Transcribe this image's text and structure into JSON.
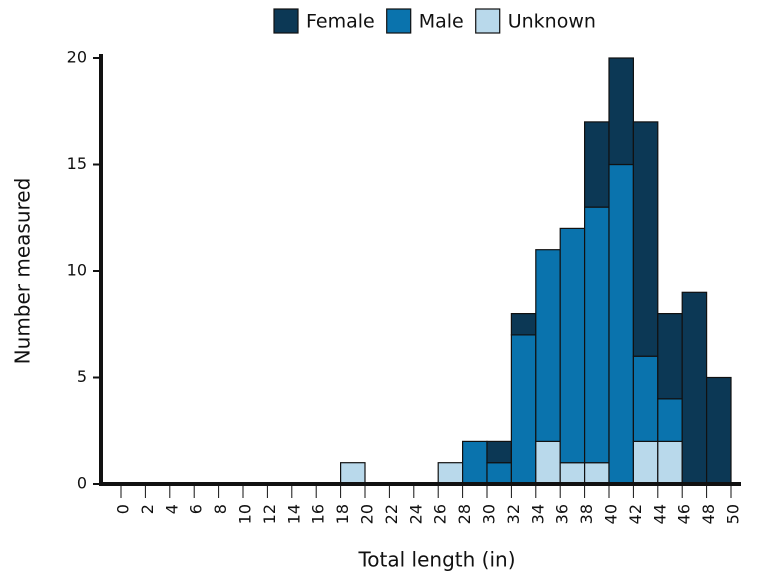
{
  "chart_data": {
    "type": "histogram",
    "x_label": "Total length (in)",
    "y_label": "Number measured",
    "bins": [
      0,
      2,
      4,
      6,
      8,
      10,
      12,
      14,
      16,
      18,
      20,
      22,
      24,
      26,
      28,
      30,
      32,
      34,
      36,
      38,
      40,
      42,
      44,
      46,
      48,
      50
    ],
    "series": [
      {
        "name": "Female",
        "color": "#0c3855",
        "values": [
          0,
          0,
          0,
          0,
          0,
          0,
          0,
          0,
          0,
          0,
          0,
          0,
          0,
          0,
          0,
          1,
          1,
          0,
          0,
          4,
          5,
          11,
          4,
          9,
          5
        ]
      },
      {
        "name": "Male",
        "color": "#0a73ad",
        "values": [
          0,
          0,
          0,
          0,
          0,
          0,
          0,
          0,
          0,
          0,
          0,
          0,
          0,
          0,
          2,
          1,
          7,
          9,
          11,
          12,
          15,
          4,
          2,
          0,
          0
        ]
      },
      {
        "name": "Unknown",
        "color": "#b9d9eb",
        "values": [
          0,
          0,
          0,
          0,
          0,
          0,
          0,
          0,
          0,
          1,
          0,
          0,
          0,
          1,
          0,
          0,
          0,
          2,
          1,
          1,
          0,
          2,
          2,
          0,
          0
        ]
      }
    ],
    "xlim": [
      0,
      50
    ],
    "xticks": [
      0,
      2,
      4,
      6,
      8,
      10,
      12,
      14,
      16,
      18,
      20,
      22,
      24,
      26,
      28,
      30,
      32,
      34,
      36,
      38,
      40,
      42,
      44,
      46,
      48,
      50
    ],
    "ylim": [
      0,
      20
    ],
    "yticks": [
      0,
      5,
      10,
      15,
      20
    ],
    "legend": "top"
  }
}
